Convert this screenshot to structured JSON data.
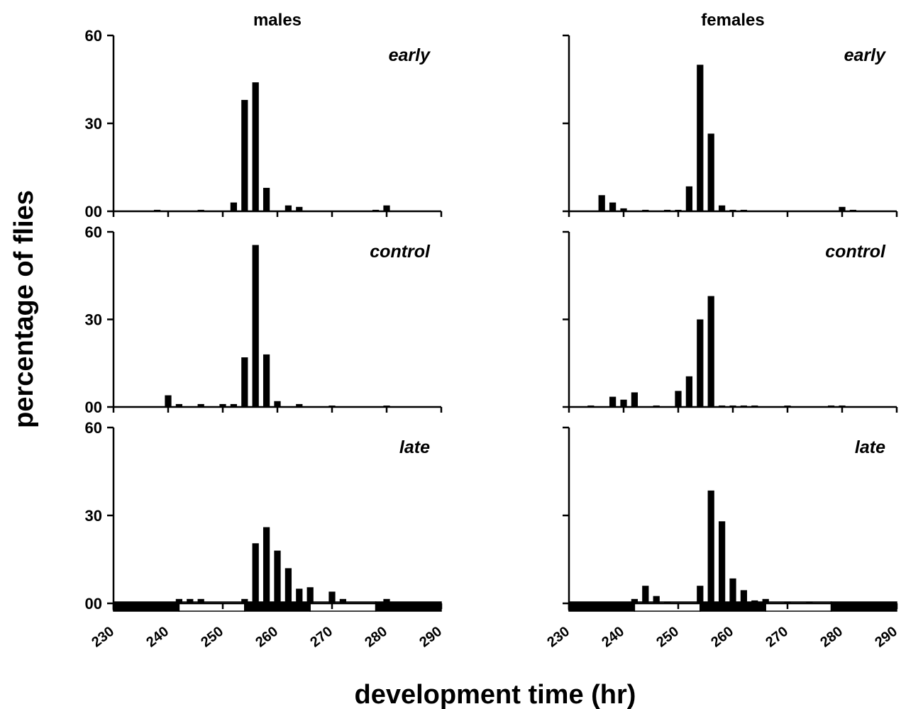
{
  "figure": {
    "ylabel": "percentage of flies",
    "xlabel": "development time (hr)"
  },
  "chart_data": [
    {
      "type": "bar",
      "column": "males",
      "row": "early",
      "title": "males",
      "label": "early",
      "xlim": [
        230,
        290
      ],
      "ylim": [
        0,
        60
      ],
      "xticks": [
        "230",
        "240",
        "250",
        "260",
        "270",
        "280",
        "290"
      ],
      "yticks": [
        "00",
        "30",
        "60"
      ],
      "bar_width": 1.2,
      "x": [
        238,
        246,
        252,
        254,
        256,
        258,
        262,
        264,
        278,
        280
      ],
      "values": [
        0.5,
        0.5,
        3,
        38,
        44,
        8,
        2,
        1.5,
        0.5,
        2
      ]
    },
    {
      "type": "bar",
      "column": "females",
      "row": "early",
      "title": "females",
      "label": "early",
      "xlim": [
        230,
        290
      ],
      "ylim": [
        0,
        60
      ],
      "xticks": [
        "230",
        "240",
        "250",
        "260",
        "270",
        "280",
        "290"
      ],
      "yticks": [
        "",
        "",
        ""
      ],
      "bar_width": 1.2,
      "x": [
        236,
        238,
        240,
        244,
        248,
        250,
        252,
        254,
        256,
        258,
        260,
        262,
        280,
        282
      ],
      "values": [
        5.5,
        3,
        1,
        0.5,
        0.5,
        0.5,
        8.5,
        50,
        26.5,
        2,
        0.5,
        0.5,
        1.5,
        0.5
      ]
    },
    {
      "type": "bar",
      "column": "males",
      "row": "control",
      "label": "control",
      "xlim": [
        230,
        290
      ],
      "ylim": [
        0,
        60
      ],
      "xticks": [
        "230",
        "240",
        "250",
        "260",
        "270",
        "280",
        "290"
      ],
      "yticks": [
        "00",
        "30",
        "60"
      ],
      "bar_width": 1.2,
      "x": [
        240,
        242,
        246,
        250,
        252,
        254,
        256,
        258,
        260,
        264,
        270,
        280
      ],
      "values": [
        4,
        1,
        1,
        1,
        1,
        17,
        55.5,
        18,
        2,
        1,
        0.3,
        0.3
      ]
    },
    {
      "type": "bar",
      "column": "females",
      "row": "control",
      "label": "control",
      "xlim": [
        230,
        290
      ],
      "ylim": [
        0,
        60
      ],
      "xticks": [
        "230",
        "240",
        "250",
        "260",
        "270",
        "280",
        "290"
      ],
      "yticks": [
        "",
        "",
        ""
      ],
      "bar_width": 1.2,
      "x": [
        234,
        238,
        240,
        242,
        246,
        250,
        252,
        254,
        256,
        258,
        260,
        262,
        264,
        270,
        278,
        280
      ],
      "values": [
        0.5,
        3.5,
        2.5,
        5,
        0.5,
        5.5,
        10.5,
        30,
        38,
        0.5,
        0.5,
        0.5,
        0.5,
        0.3,
        0.5,
        0.5
      ]
    },
    {
      "type": "bar",
      "column": "males",
      "row": "late",
      "label": "late",
      "xlim": [
        230,
        290
      ],
      "ylim": [
        0,
        60
      ],
      "xticks": [
        "230",
        "240",
        "250",
        "260",
        "270",
        "280",
        "290"
      ],
      "yticks": [
        "00",
        "30",
        "60"
      ],
      "bar_width": 1.2,
      "x": [
        240,
        242,
        244,
        246,
        254,
        256,
        258,
        260,
        262,
        264,
        266,
        270,
        272,
        280
      ],
      "values": [
        0.5,
        1.5,
        1.5,
        1.5,
        1.5,
        20.5,
        26,
        18,
        12,
        5,
        5.5,
        4,
        1.5,
        1.5
      ],
      "light_dark_bands": [
        {
          "from": 230,
          "to": 242,
          "phase": "dark"
        },
        {
          "from": 242,
          "to": 254,
          "phase": "light"
        },
        {
          "from": 254,
          "to": 266,
          "phase": "dark"
        },
        {
          "from": 266,
          "to": 278,
          "phase": "light"
        },
        {
          "from": 278,
          "to": 290,
          "phase": "dark"
        }
      ]
    },
    {
      "type": "bar",
      "column": "females",
      "row": "late",
      "label": "late",
      "xlim": [
        230,
        290
      ],
      "ylim": [
        0,
        60
      ],
      "xticks": [
        "230",
        "240",
        "250",
        "260",
        "270",
        "280",
        "290"
      ],
      "yticks": [
        "",
        "",
        ""
      ],
      "bar_width": 1.2,
      "x": [
        236,
        242,
        244,
        246,
        248,
        254,
        256,
        258,
        260,
        262,
        264,
        266,
        270,
        274,
        282
      ],
      "values": [
        0.5,
        1.5,
        6,
        2.5,
        0.5,
        6,
        38.5,
        28,
        8.5,
        4.5,
        1,
        1.5,
        0.5,
        0.5,
        0.5
      ],
      "light_dark_bands": [
        {
          "from": 230,
          "to": 242,
          "phase": "dark"
        },
        {
          "from": 242,
          "to": 254,
          "phase": "light"
        },
        {
          "from": 254,
          "to": 266,
          "phase": "dark"
        },
        {
          "from": 266,
          "to": 278,
          "phase": "light"
        },
        {
          "from": 278,
          "to": 290,
          "phase": "dark"
        }
      ]
    }
  ]
}
